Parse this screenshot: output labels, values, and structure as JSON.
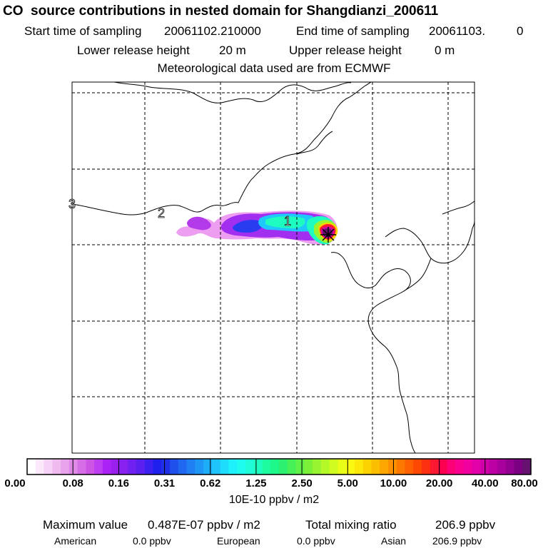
{
  "title": "CO  source contributions in nested domain for Shangdianzi_200611",
  "header": {
    "start_label": "Start time of sampling",
    "start_value": "20061102.210000",
    "end_label": "End time of sampling",
    "end_value": "20061103.",
    "end_suffix": "0",
    "lower_label": "Lower release height",
    "lower_value": "20 m",
    "upper_label": "Upper release height",
    "upper_value": "0 m",
    "met_line": "Meteorological data used are from ECMWF"
  },
  "map": {
    "contour_labels": [
      "3",
      "2",
      "1"
    ],
    "receptor_marker": "+"
  },
  "colorbar": {
    "ticks": [
      "0.00",
      "0.08",
      "0.16",
      "0.31",
      "0.62",
      "1.25",
      "2.50",
      "5.00",
      "10.00",
      "20.00",
      "40.00",
      "80.00"
    ],
    "colors": [
      "#ffffff",
      "#fbe8fb",
      "#f6d2f6",
      "#f0bcf0",
      "#e9a2ec",
      "#e08ae8",
      "#d66ee6",
      "#cc55e6",
      "#bd3df0",
      "#ab22f5",
      "#9a20f0",
      "#8820f0",
      "#7020f0",
      "#5a20f0",
      "#3c20f0",
      "#2020ee",
      "#2030e8",
      "#2050ec",
      "#2068f0",
      "#1f80f4",
      "#1e96f6",
      "#1eadf8",
      "#1ec4fa",
      "#1edcfc",
      "#1ef0fc",
      "#1efcf0",
      "#1efcd8",
      "#1efcc0",
      "#1efca0",
      "#1ef888",
      "#2ef070",
      "#48f058",
      "#60f048",
      "#7cf038",
      "#98f430",
      "#b4f828",
      "#d0fc20",
      "#e8fc18",
      "#f8f810",
      "#fce808",
      "#fcd200",
      "#fcbe00",
      "#fca800",
      "#fc9000",
      "#fc7800",
      "#fc6000",
      "#fc4800",
      "#fc3010",
      "#fc1830",
      "#fc0050",
      "#fc0078",
      "#f80090",
      "#f000a0",
      "#e200a8",
      "#d000a8",
      "#bc00a4",
      "#a8009c",
      "#920090",
      "#7c0082",
      "#661070"
    ],
    "units": "10E-10 ppbv / m2"
  },
  "stats": {
    "max_label": "Maximum value",
    "max_value": "0.487E-07 ppbv / m2",
    "total_label": "Total mixing ratio",
    "total_value": "206.9 ppbv",
    "american_label": "American",
    "american_value": "0.0 ppbv",
    "european_label": "European",
    "european_value": "0.0 ppbv",
    "asian_label": "Asian",
    "asian_value": "206.9 ppbv"
  }
}
